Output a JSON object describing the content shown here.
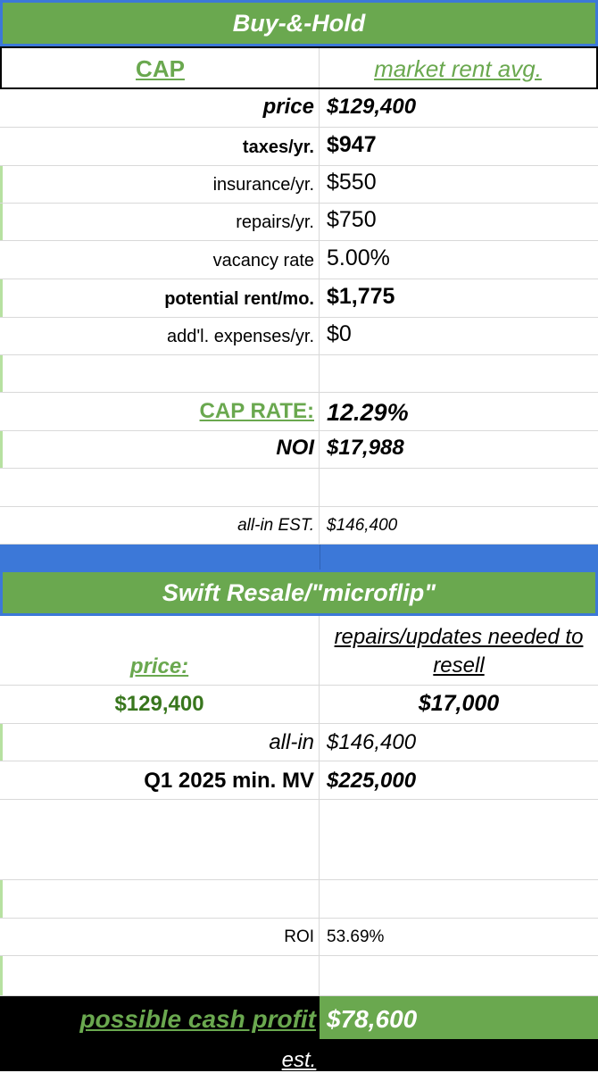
{
  "buy_hold": {
    "title": "Buy-&-Hold",
    "col_left": "CAP",
    "col_right": "market rent avg.",
    "rows": [
      {
        "label": "price",
        "value": "$129,400"
      },
      {
        "label": "taxes/yr.",
        "value": "$947"
      },
      {
        "label": "insurance/yr.",
        "value": "$550"
      },
      {
        "label": "repairs/yr.",
        "value": "$750"
      },
      {
        "label": "vacancy rate",
        "value": "5.00%"
      },
      {
        "label": "potential rent/mo.",
        "value": "$1,775"
      },
      {
        "label": "add'l. expenses/yr.",
        "value": "$0"
      }
    ],
    "cap_rate_label": "CAP RATE:",
    "cap_rate_value": "12.29%",
    "noi_label": "NOI",
    "noi_value": "$17,988",
    "all_in_label": "all-in EST.",
    "all_in_value": "$146,400"
  },
  "resale": {
    "title": "Swift Resale/\"microflip\"",
    "price_label": "price:",
    "repairs_label": "repairs/updates needed to resell",
    "price_value": "$129,400",
    "repairs_value": "$17,000",
    "all_in_label": "all-in",
    "all_in_value": "$146,400",
    "mv_label": "Q1 2025 min. MV",
    "mv_value": "$225,000",
    "roi_label": "ROI",
    "roi_value": "53.69%",
    "profit_label": "possible cash profit",
    "profit_value": "$78,600",
    "est_label": "est."
  },
  "colors": {
    "green": "#6aa84f",
    "blue": "#3c78d8",
    "black": "#000000"
  }
}
